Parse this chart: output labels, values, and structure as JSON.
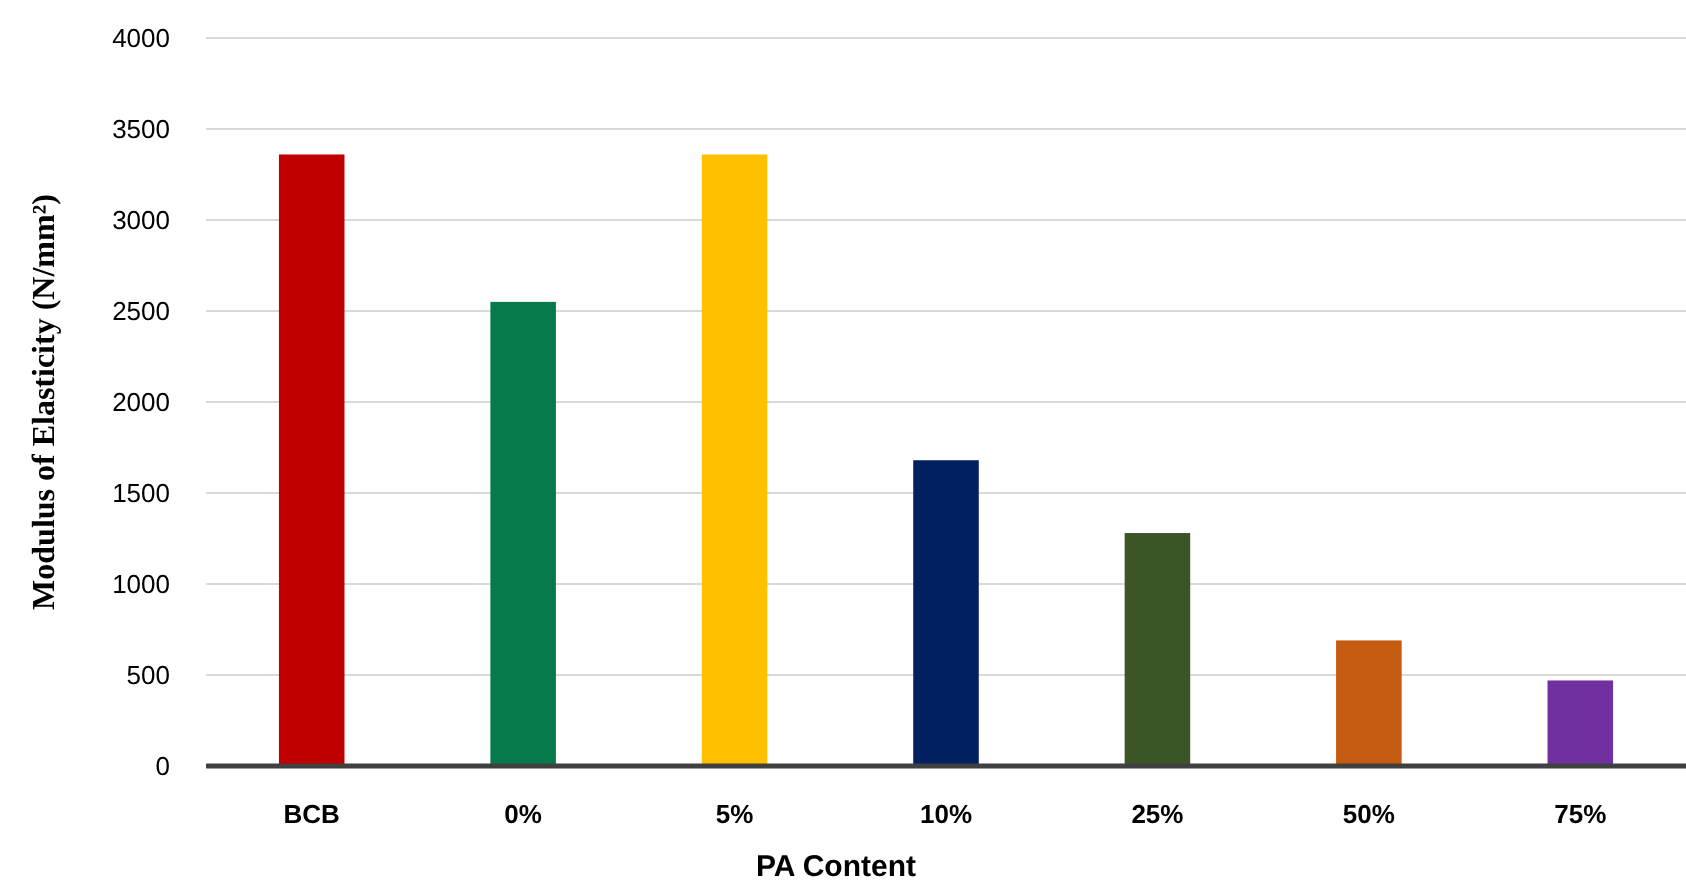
{
  "chart_data": {
    "type": "bar",
    "xlabel": "PA Content",
    "ylabel": "Modulus of Elasticity (N/mm²)",
    "categories": [
      "BCB",
      "0%",
      "5%",
      "10%",
      "25%",
      "50%",
      "75%"
    ],
    "values": [
      3360,
      2550,
      3360,
      1680,
      1280,
      690,
      470
    ],
    "colors": [
      "#c00000",
      "#077a4b",
      "#ffc000",
      "#002060",
      "#3b5526",
      "#c55a11",
      "#7030a0"
    ],
    "ylim": [
      0,
      4000
    ],
    "yticks": [
      0,
      500,
      1000,
      1500,
      2000,
      2500,
      3000,
      3500,
      4000
    ],
    "grid": "y"
  }
}
